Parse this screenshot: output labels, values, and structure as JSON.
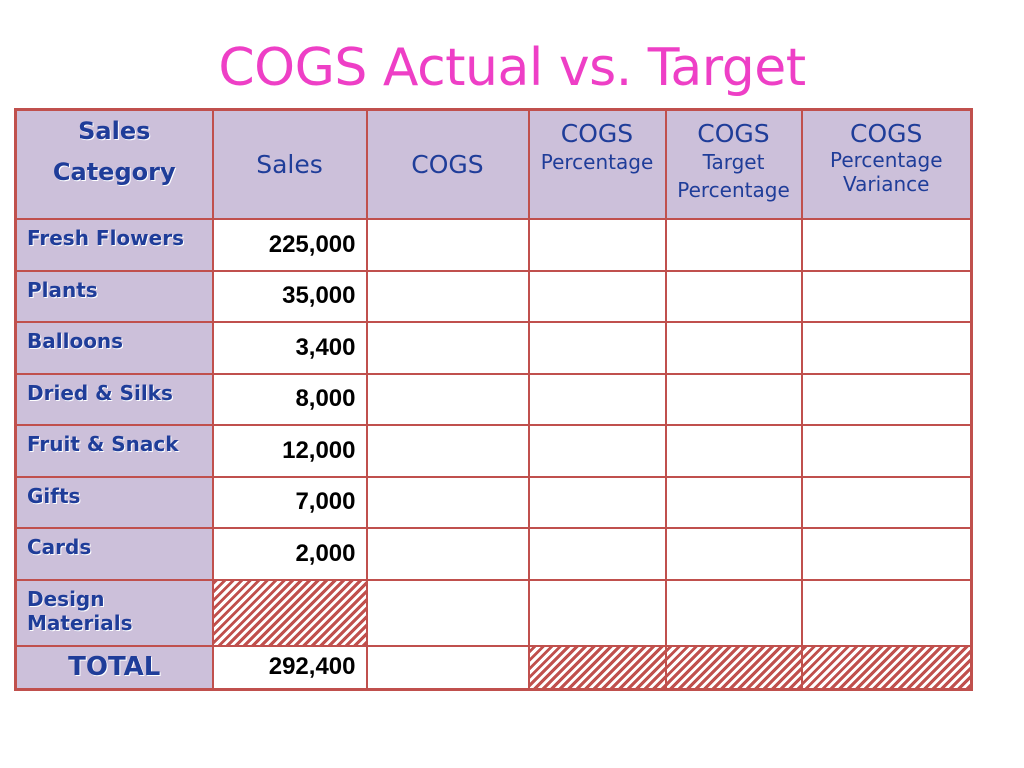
{
  "title": "COGS Actual vs. Target",
  "headers": {
    "category": {
      "line1": "Sales",
      "line2": "Category"
    },
    "sales": "Sales",
    "cogs": "COGS",
    "cogs_pct": {
      "main": "COGS",
      "sub": "Percentage"
    },
    "cogs_target": {
      "main": "COGS",
      "sub1": "Target",
      "sub2": "Percentage"
    },
    "cogs_var": {
      "main": "COGS",
      "sub1": "Percentage",
      "sub2": "Variance"
    }
  },
  "rows": [
    {
      "category": "Fresh Flowers",
      "sales": "225,000"
    },
    {
      "category": "Plants",
      "sales": "35,000"
    },
    {
      "category": "Balloons",
      "sales": "3,400"
    },
    {
      "category": "Dried & Silks",
      "sales": "8,000"
    },
    {
      "category": "Fruit & Snack",
      "sales": "12,000"
    },
    {
      "category": "Gifts",
      "sales": "7,000"
    },
    {
      "category": "Cards",
      "sales": "2,000"
    },
    {
      "category_line1": "Design",
      "category_line2": "Materials",
      "sales": ""
    }
  ],
  "total": {
    "label": "TOTAL",
    "sales": "292,400"
  },
  "colors": {
    "title": "#ee3fc6",
    "header_bg": "#ccc0da",
    "header_text": "#1f3d99",
    "border": "#c0504d"
  }
}
